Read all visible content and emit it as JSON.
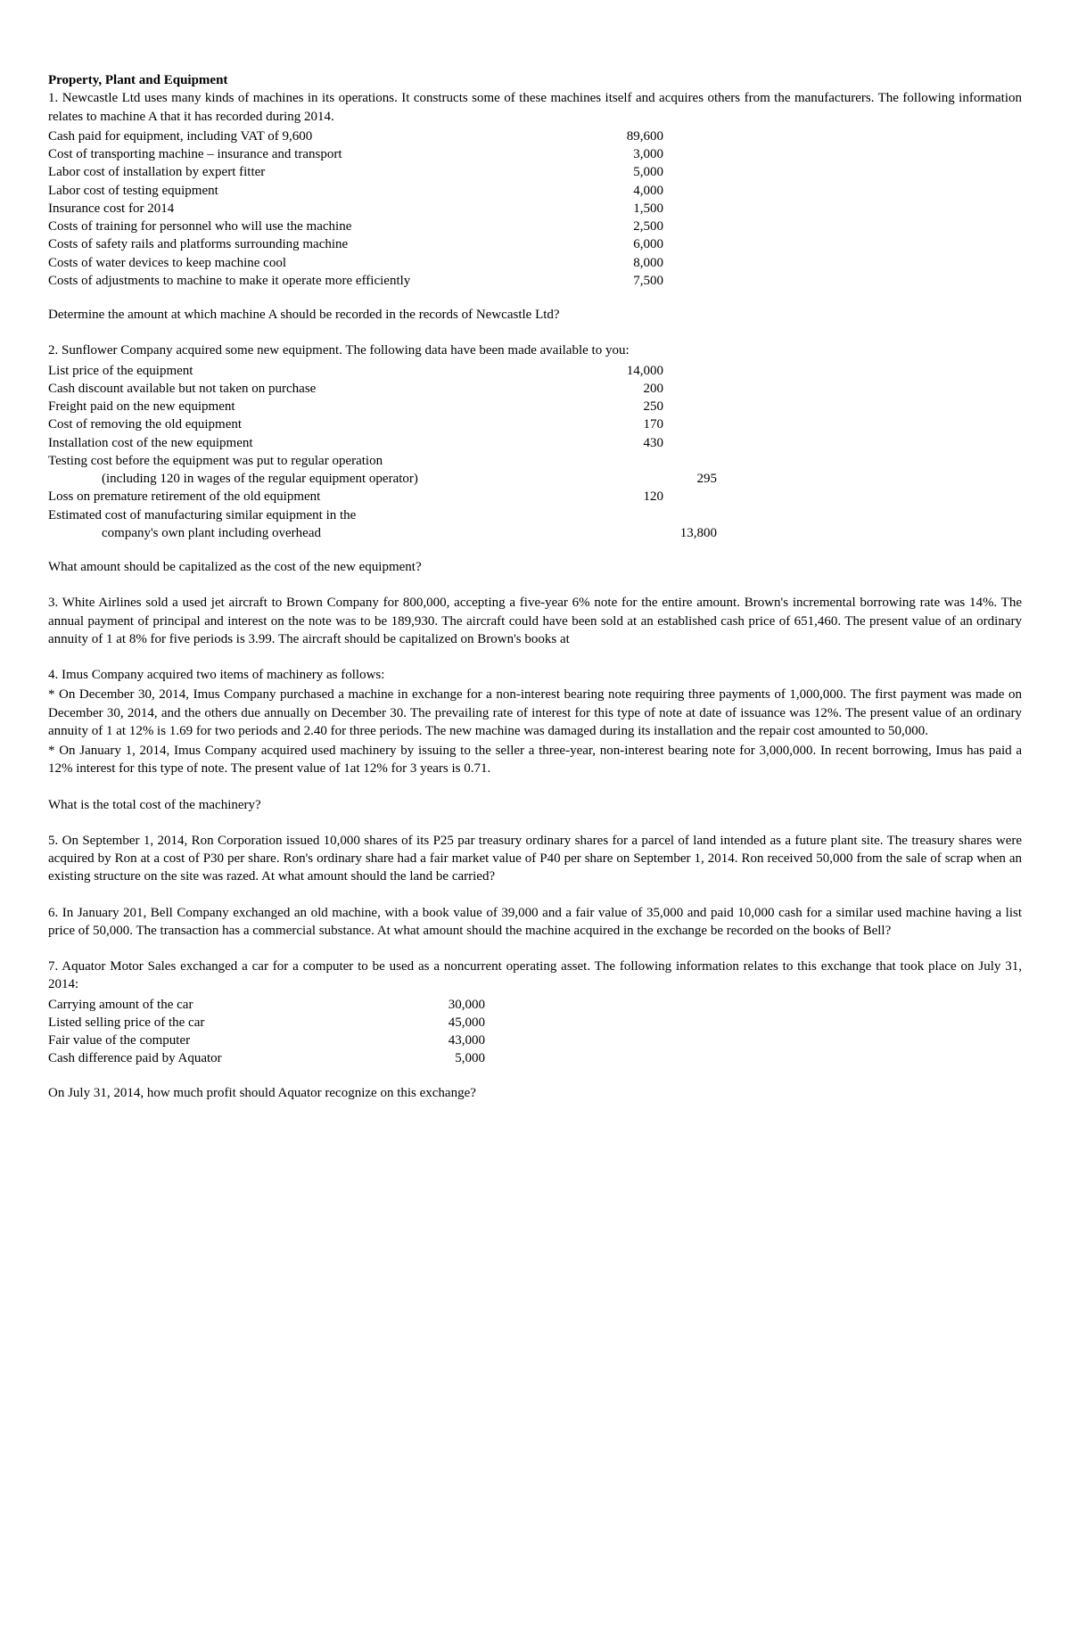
{
  "title": "Property, Plant and Equipment",
  "q1": {
    "intro": "1. Newcastle Ltd uses many kinds of machines in its operations. It constructs some of these machines itself and acquires others from the manufacturers. The following information relates to machine A that it has recorded during 2014.",
    "rows": [
      {
        "label": "Cash paid for equipment, including VAT of 9,600",
        "value": "89,600"
      },
      {
        "label": "Cost of transporting machine – insurance and transport",
        "value": "3,000"
      },
      {
        "label": "Labor cost of installation by expert fitter",
        "value": "5,000"
      },
      {
        "label": "Labor cost of testing equipment",
        "value": "4,000"
      },
      {
        "label": "Insurance cost for 2014",
        "value": "1,500"
      },
      {
        "label": "Costs of training for personnel who will use the machine",
        "value": "2,500"
      },
      {
        "label": "Costs of safety rails and platforms surrounding machine",
        "value": "6,000"
      },
      {
        "label": "Costs of water devices to keep machine cool",
        "value": "8,000"
      },
      {
        "label": "Costs of adjustments to machine to make it operate more efficiently",
        "value": "7,500"
      }
    ],
    "question": "Determine the amount at which machine A should be recorded in the records of Newcastle Ltd?"
  },
  "q2": {
    "intro": "2. Sunflower Company acquired some new equipment. The following data have been made available to you:",
    "rows": [
      {
        "label": "List price of the equipment",
        "value": "14,000",
        "indent": false
      },
      {
        "label": "Cash discount available but not taken on purchase",
        "value": "200",
        "indent": false
      },
      {
        "label": "Freight paid on the new equipment",
        "value": "250",
        "indent": false
      },
      {
        "label": "Cost of removing the old equipment",
        "value": "170",
        "indent": false
      },
      {
        "label": "Installation cost of the new equipment",
        "value": "430",
        "indent": false
      },
      {
        "label": "Testing cost before the equipment was put to regular operation",
        "value": "",
        "indent": false
      },
      {
        "label": "(including 120 in wages of the regular equipment operator)",
        "value": "295",
        "indent": true
      },
      {
        "label": "Loss on premature retirement of the old equipment",
        "value": "120",
        "indent": false
      },
      {
        "label": "Estimated cost of manufacturing similar equipment in the",
        "value": "",
        "indent": false
      },
      {
        "label": "company's own plant including overhead",
        "value": "13,800",
        "indent": true
      }
    ],
    "question": "What amount should be capitalized as the cost of the new equipment?"
  },
  "q3": {
    "text": "3. White Airlines sold a used jet aircraft to Brown Company for 800,000, accepting a five-year 6% note for the entire amount. Brown's incremental borrowing rate was 14%. The annual payment of principal and interest on the note was to be 189,930. The aircraft could have been sold at an established cash price of 651,460. The present value of an ordinary annuity of 1 at 8% for five periods is 3.99. The aircraft should be capitalized on Brown's books at"
  },
  "q4": {
    "intro": "4. Imus Company acquired two items of machinery as follows:",
    "bullet1": "* On December 30, 2014, Imus Company purchased a machine in exchange for a non-interest bearing note requiring three payments of 1,000,000. The first payment was made on December 30, 2014, and the others due annually on December 30. The prevailing rate of interest for this type of note at date of issuance was 12%. The present value of an ordinary annuity of 1 at 12% is 1.69 for two periods and 2.40 for three periods. The new machine was damaged during its installation and the repair cost amounted to 50,000.",
    "bullet2": "* On January 1, 2014, Imus Company acquired used machinery by issuing to the seller a three-year, non-interest bearing note for 3,000,000. In recent borrowing, Imus has paid a 12% interest for this type of note. The present value of 1at 12% for 3 years is 0.71.",
    "question": "What is the total cost of the machinery?"
  },
  "q5": {
    "text": "5. On September 1, 2014, Ron Corporation issued 10,000 shares of its P25 par treasury ordinary shares for a parcel of land intended as a future plant site. The treasury shares were acquired by Ron at a cost of P30 per share. Ron's ordinary share had a fair market value of P40 per share on September 1, 2014. Ron received 50,000 from the sale of scrap when an existing structure on the site was razed. At what amount should the land be carried?"
  },
  "q6": {
    "text": "6. In January 201, Bell Company exchanged an old machine, with a book value of 39,000 and a fair value of 35,000 and paid 10,000 cash for a similar used machine having a list price of 50,000. The transaction has a commercial substance. At what amount should the machine acquired in the exchange be recorded on the books of Bell?"
  },
  "q7": {
    "intro": "7. Aquator Motor Sales exchanged a car for a computer to be used as a noncurrent operating asset. The following information relates to this exchange that took place on July 31, 2014:",
    "rows": [
      {
        "label": "Carrying amount of the car",
        "value": "30,000"
      },
      {
        "label": "Listed selling price of the car",
        "value": "45,000"
      },
      {
        "label": "Fair value of the computer",
        "value": "43,000"
      },
      {
        "label": "Cash difference paid by Aquator",
        "value": "5,000"
      }
    ],
    "question": "On July 31, 2014, how much profit should Aquator recognize on this exchange?"
  }
}
